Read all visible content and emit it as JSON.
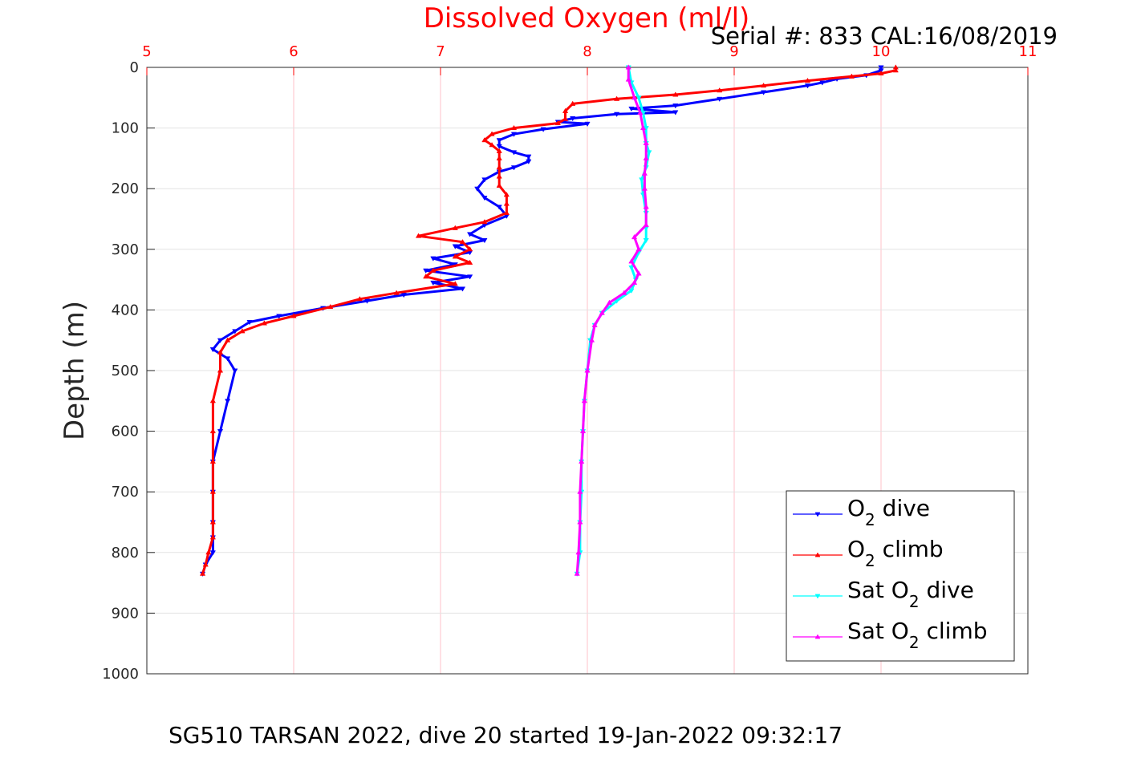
{
  "chart_data": {
    "type": "line",
    "title": "Dissolved Oxygen (ml/l)",
    "annotation": "Serial #: 833  CAL:16/08/2019",
    "xlabel": "",
    "ylabel": "Depth (m)",
    "caption": "SG510 TARSAN 2022, dive 20 started 19-Jan-2022 09:32:17",
    "xlim": [
      5,
      11
    ],
    "ylim": [
      0,
      1000
    ],
    "y_reversed": true,
    "x_axis_position": "top",
    "x_ticks": [
      "5",
      "6",
      "7",
      "8",
      "9",
      "10",
      "11"
    ],
    "y_ticks": [
      "0",
      "100",
      "200",
      "300",
      "400",
      "500",
      "600",
      "700",
      "800",
      "900",
      "1000"
    ],
    "grid": true,
    "legend_position": "bottom-right",
    "series": [
      {
        "name": "O2 dive",
        "legend": {
          "pre": "O",
          "sub": "2",
          "post": " dive"
        },
        "color": "#0000ff",
        "marker": "triangle-down",
        "points": [
          [
            10.0,
            0
          ],
          [
            10.0,
            5
          ],
          [
            9.9,
            13
          ],
          [
            9.7,
            19
          ],
          [
            9.6,
            25
          ],
          [
            9.5,
            30
          ],
          [
            9.2,
            41
          ],
          [
            8.9,
            52
          ],
          [
            8.6,
            63
          ],
          [
            8.3,
            68
          ],
          [
            8.6,
            74
          ],
          [
            8.2,
            77
          ],
          [
            7.9,
            84
          ],
          [
            7.8,
            90
          ],
          [
            8.0,
            93
          ],
          [
            7.7,
            102
          ],
          [
            7.5,
            110
          ],
          [
            7.4,
            120
          ],
          [
            7.4,
            130
          ],
          [
            7.5,
            140
          ],
          [
            7.6,
            147
          ],
          [
            7.6,
            155
          ],
          [
            7.5,
            165
          ],
          [
            7.4,
            172
          ],
          [
            7.3,
            185
          ],
          [
            7.25,
            200
          ],
          [
            7.3,
            215
          ],
          [
            7.4,
            230
          ],
          [
            7.45,
            245
          ],
          [
            7.3,
            260
          ],
          [
            7.2,
            275
          ],
          [
            7.3,
            285
          ],
          [
            7.1,
            295
          ],
          [
            7.2,
            305
          ],
          [
            6.95,
            315
          ],
          [
            7.1,
            325
          ],
          [
            6.9,
            335
          ],
          [
            7.2,
            345
          ],
          [
            6.95,
            355
          ],
          [
            7.15,
            365
          ],
          [
            6.75,
            375
          ],
          [
            6.5,
            385
          ],
          [
            6.2,
            397
          ],
          [
            5.9,
            410
          ],
          [
            5.7,
            420
          ],
          [
            5.6,
            435
          ],
          [
            5.5,
            450
          ],
          [
            5.45,
            465
          ],
          [
            5.55,
            480
          ],
          [
            5.6,
            500
          ],
          [
            5.55,
            550
          ],
          [
            5.5,
            600
          ],
          [
            5.45,
            650
          ],
          [
            5.45,
            700
          ],
          [
            5.45,
            750
          ],
          [
            5.45,
            775
          ],
          [
            5.45,
            800
          ],
          [
            5.4,
            820
          ],
          [
            5.38,
            835
          ]
        ]
      },
      {
        "name": "O2 climb",
        "legend": {
          "pre": "O",
          "sub": "2",
          "post": " climb"
        },
        "color": "#ff0000",
        "marker": "triangle-up",
        "points": [
          [
            10.1,
            0
          ],
          [
            10.1,
            5
          ],
          [
            10.0,
            10
          ],
          [
            9.8,
            15
          ],
          [
            9.5,
            22
          ],
          [
            9.2,
            30
          ],
          [
            8.9,
            38
          ],
          [
            8.6,
            45
          ],
          [
            8.2,
            52
          ],
          [
            7.9,
            60
          ],
          [
            7.85,
            72
          ],
          [
            7.85,
            85
          ],
          [
            7.8,
            92
          ],
          [
            7.5,
            100
          ],
          [
            7.35,
            110
          ],
          [
            7.3,
            120
          ],
          [
            7.35,
            128
          ],
          [
            7.4,
            138
          ],
          [
            7.4,
            150
          ],
          [
            7.4,
            165
          ],
          [
            7.4,
            180
          ],
          [
            7.4,
            195
          ],
          [
            7.45,
            210
          ],
          [
            7.45,
            225
          ],
          [
            7.45,
            240
          ],
          [
            7.3,
            255
          ],
          [
            7.1,
            265
          ],
          [
            6.85,
            278
          ],
          [
            7.15,
            288
          ],
          [
            7.2,
            300
          ],
          [
            7.1,
            312
          ],
          [
            7.2,
            322
          ],
          [
            6.95,
            335
          ],
          [
            6.9,
            345
          ],
          [
            7.1,
            357
          ],
          [
            6.7,
            372
          ],
          [
            6.45,
            382
          ],
          [
            6.25,
            395
          ],
          [
            6.0,
            410
          ],
          [
            5.8,
            422
          ],
          [
            5.65,
            435
          ],
          [
            5.55,
            450
          ],
          [
            5.5,
            470
          ],
          [
            5.5,
            500
          ],
          [
            5.45,
            550
          ],
          [
            5.45,
            600
          ],
          [
            5.45,
            650
          ],
          [
            5.45,
            700
          ],
          [
            5.45,
            750
          ],
          [
            5.45,
            775
          ],
          [
            5.42,
            800
          ],
          [
            5.4,
            820
          ],
          [
            5.38,
            835
          ]
        ]
      },
      {
        "name": "Sat O2 dive",
        "legend": {
          "pre": "Sat O",
          "sub": "2",
          "post": " dive"
        },
        "color": "#00ffff",
        "marker": "triangle-down",
        "points": [
          [
            8.28,
            0
          ],
          [
            8.3,
            25
          ],
          [
            8.35,
            50
          ],
          [
            8.38,
            75
          ],
          [
            8.4,
            100
          ],
          [
            8.4,
            125
          ],
          [
            8.42,
            140
          ],
          [
            8.4,
            165
          ],
          [
            8.37,
            185
          ],
          [
            8.38,
            210
          ],
          [
            8.4,
            240
          ],
          [
            8.4,
            265
          ],
          [
            8.4,
            285
          ],
          [
            8.35,
            305
          ],
          [
            8.3,
            330
          ],
          [
            8.33,
            350
          ],
          [
            8.3,
            368
          ],
          [
            8.2,
            385
          ],
          [
            8.1,
            405
          ],
          [
            8.05,
            425
          ],
          [
            8.02,
            450
          ],
          [
            8.0,
            500
          ],
          [
            7.98,
            550
          ],
          [
            7.97,
            600
          ],
          [
            7.96,
            650
          ],
          [
            7.96,
            700
          ],
          [
            7.95,
            750
          ],
          [
            7.95,
            800
          ],
          [
            7.93,
            835
          ]
        ]
      },
      {
        "name": "Sat O2 climb",
        "legend": {
          "pre": "Sat O",
          "sub": "2",
          "post": " climb"
        },
        "color": "#ff00ff",
        "marker": "triangle-up",
        "points": [
          [
            8.28,
            0
          ],
          [
            8.28,
            20
          ],
          [
            8.32,
            50
          ],
          [
            8.36,
            75
          ],
          [
            8.38,
            100
          ],
          [
            8.4,
            125
          ],
          [
            8.4,
            150
          ],
          [
            8.39,
            175
          ],
          [
            8.39,
            200
          ],
          [
            8.4,
            230
          ],
          [
            8.4,
            260
          ],
          [
            8.32,
            280
          ],
          [
            8.35,
            300
          ],
          [
            8.3,
            320
          ],
          [
            8.35,
            340
          ],
          [
            8.32,
            355
          ],
          [
            8.25,
            372
          ],
          [
            8.15,
            388
          ],
          [
            8.1,
            405
          ],
          [
            8.05,
            425
          ],
          [
            8.03,
            450
          ],
          [
            8.0,
            500
          ],
          [
            7.98,
            550
          ],
          [
            7.97,
            600
          ],
          [
            7.96,
            650
          ],
          [
            7.95,
            700
          ],
          [
            7.95,
            750
          ],
          [
            7.94,
            800
          ],
          [
            7.93,
            835
          ]
        ]
      }
    ]
  }
}
